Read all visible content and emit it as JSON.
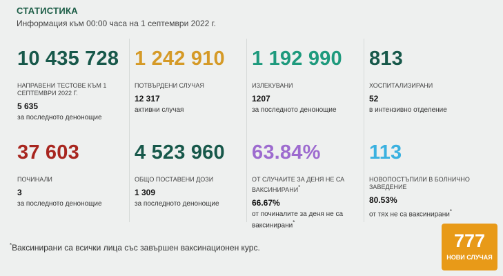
{
  "header": {
    "title": "СТАТИСТИКА",
    "subtitle": "Информация към 00:00 часа на 1 септември 2022 г."
  },
  "stats": [
    {
      "value": "10 435 728",
      "label": "НАПРАВЕНИ ТЕСТОВЕ КЪМ 1 СЕПТЕМВРИ 2022 Г.",
      "sub_value": "5 635",
      "sub_label": "за последното денонощие",
      "color": "#17584a"
    },
    {
      "value": "1 242 910",
      "label": "ПОТВЪРДЕНИ СЛУЧАЯ",
      "sub_value": "12 317",
      "sub_label": "активни случая",
      "color": "#d59a27"
    },
    {
      "value": "1 192 990",
      "label": "ИЗЛЕКУВАНИ",
      "sub_value": "1207",
      "sub_label": "за последното денонощие",
      "color": "#1e9a7d"
    },
    {
      "value": "813",
      "label": "ХОСПИТАЛИЗИРАНИ",
      "sub_value": "52",
      "sub_label": "в интензивно отделение",
      "color": "#17584a"
    },
    {
      "value": "37 603",
      "label": "ПОЧИНАЛИ",
      "sub_value": "3",
      "sub_label": "за последното денонощие",
      "color": "#a8261f"
    },
    {
      "value": "4 523 960",
      "label": "ОБЩО ПОСТАВЕНИ ДОЗИ",
      "sub_value": "1 309",
      "sub_label": "за последното денонощие",
      "color": "#17584a"
    },
    {
      "value": "63.84%",
      "label": "ОТ СЛУЧАИТЕ ЗА ДЕНЯ НЕ СА ВАКСИНИРАНИ",
      "sub_value": "66.67%",
      "sub_label": "от починалите за деня не са ваксинирани",
      "color": "#9d6bcf"
    },
    {
      "value": "113",
      "label": "НОВОПОСТЪПИЛИ В БОЛНИЧНО ЗАВЕДЕНИЕ",
      "sub_value": "80.53%",
      "sub_label": "от тях не са ваксинирани",
      "color": "#3ab1e0"
    }
  ],
  "footnote": {
    "mark": "*",
    "text": "Ваксинирани са всички лица със завършен ваксинационен курс."
  },
  "badge": {
    "value": "777",
    "label": "НОВИ СЛУЧАЯ",
    "color": "#e89a18"
  }
}
